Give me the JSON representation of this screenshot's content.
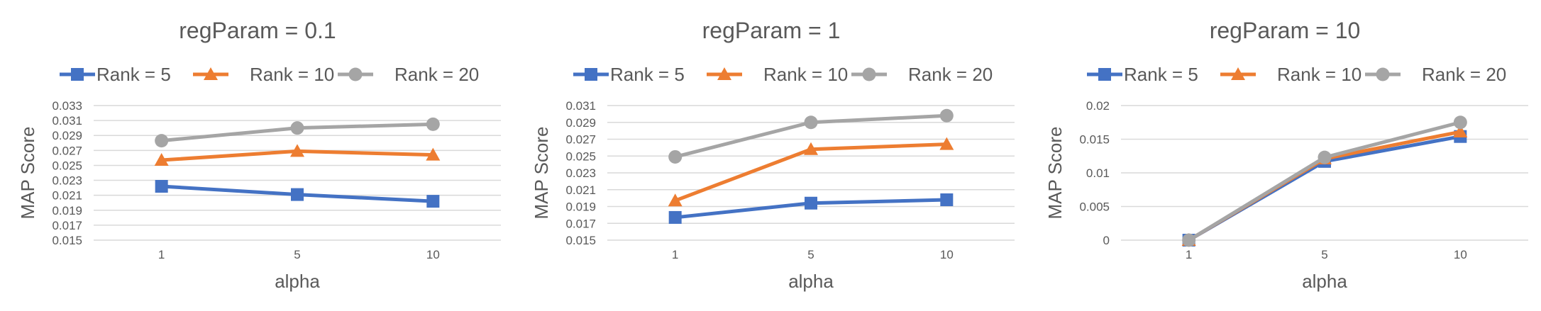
{
  "colors": {
    "Rank = 5": "#4472c4",
    "Rank = 10": "#ed7d31",
    "Rank = 20": "#a5a5a5"
  },
  "chart_data": [
    {
      "type": "line",
      "title": "regParam = 0.1",
      "xlabel": "alpha",
      "ylabel": "MAP Score",
      "categories": [
        "1",
        "5",
        "10"
      ],
      "ylim": [
        0.015,
        0.033
      ],
      "yticks": [
        "0.015",
        "0.017",
        "0.019",
        "0.021",
        "0.023",
        "0.025",
        "0.027",
        "0.029",
        "0.031",
        "0.033"
      ],
      "legend": "top",
      "series": [
        {
          "name": "Rank = 5",
          "marker": "square",
          "values": [
            0.0222,
            0.0211,
            0.0202
          ]
        },
        {
          "name": "Rank = 10",
          "marker": "triangle",
          "values": [
            0.0257,
            0.0269,
            0.0264
          ]
        },
        {
          "name": "Rank = 20",
          "marker": "circle",
          "values": [
            0.0283,
            0.03,
            0.0305
          ]
        }
      ]
    },
    {
      "type": "line",
      "title": "regParam = 1",
      "xlabel": "alpha",
      "ylabel": "MAP Score",
      "categories": [
        "1",
        "5",
        "10"
      ],
      "ylim": [
        0.015,
        0.031
      ],
      "yticks": [
        "0.015",
        "0.017",
        "0.019",
        "0.021",
        "0.023",
        "0.025",
        "0.027",
        "0.029",
        "0.031"
      ],
      "legend": "top",
      "series": [
        {
          "name": "Rank = 5",
          "marker": "square",
          "values": [
            0.0177,
            0.0194,
            0.0198
          ]
        },
        {
          "name": "Rank = 10",
          "marker": "triangle",
          "values": [
            0.0197,
            0.0258,
            0.0264
          ]
        },
        {
          "name": "Rank = 20",
          "marker": "circle",
          "values": [
            0.0249,
            0.029,
            0.0298
          ]
        }
      ]
    },
    {
      "type": "line",
      "title": "regParam = 10",
      "xlabel": "alpha",
      "ylabel": "MAP Score",
      "categories": [
        "1",
        "5",
        "10"
      ],
      "ylim": [
        0,
        0.02
      ],
      "yticks": [
        "0",
        "0.005",
        "0.01",
        "0.015",
        "0.02"
      ],
      "legend": "top",
      "series": [
        {
          "name": "Rank = 5",
          "marker": "square",
          "values": [
            0.0,
            0.0117,
            0.0154
          ]
        },
        {
          "name": "Rank = 10",
          "marker": "triangle",
          "values": [
            0.0,
            0.0121,
            0.0161
          ]
        },
        {
          "name": "Rank = 20",
          "marker": "circle",
          "values": [
            0.0,
            0.0123,
            0.0175
          ]
        }
      ]
    }
  ]
}
